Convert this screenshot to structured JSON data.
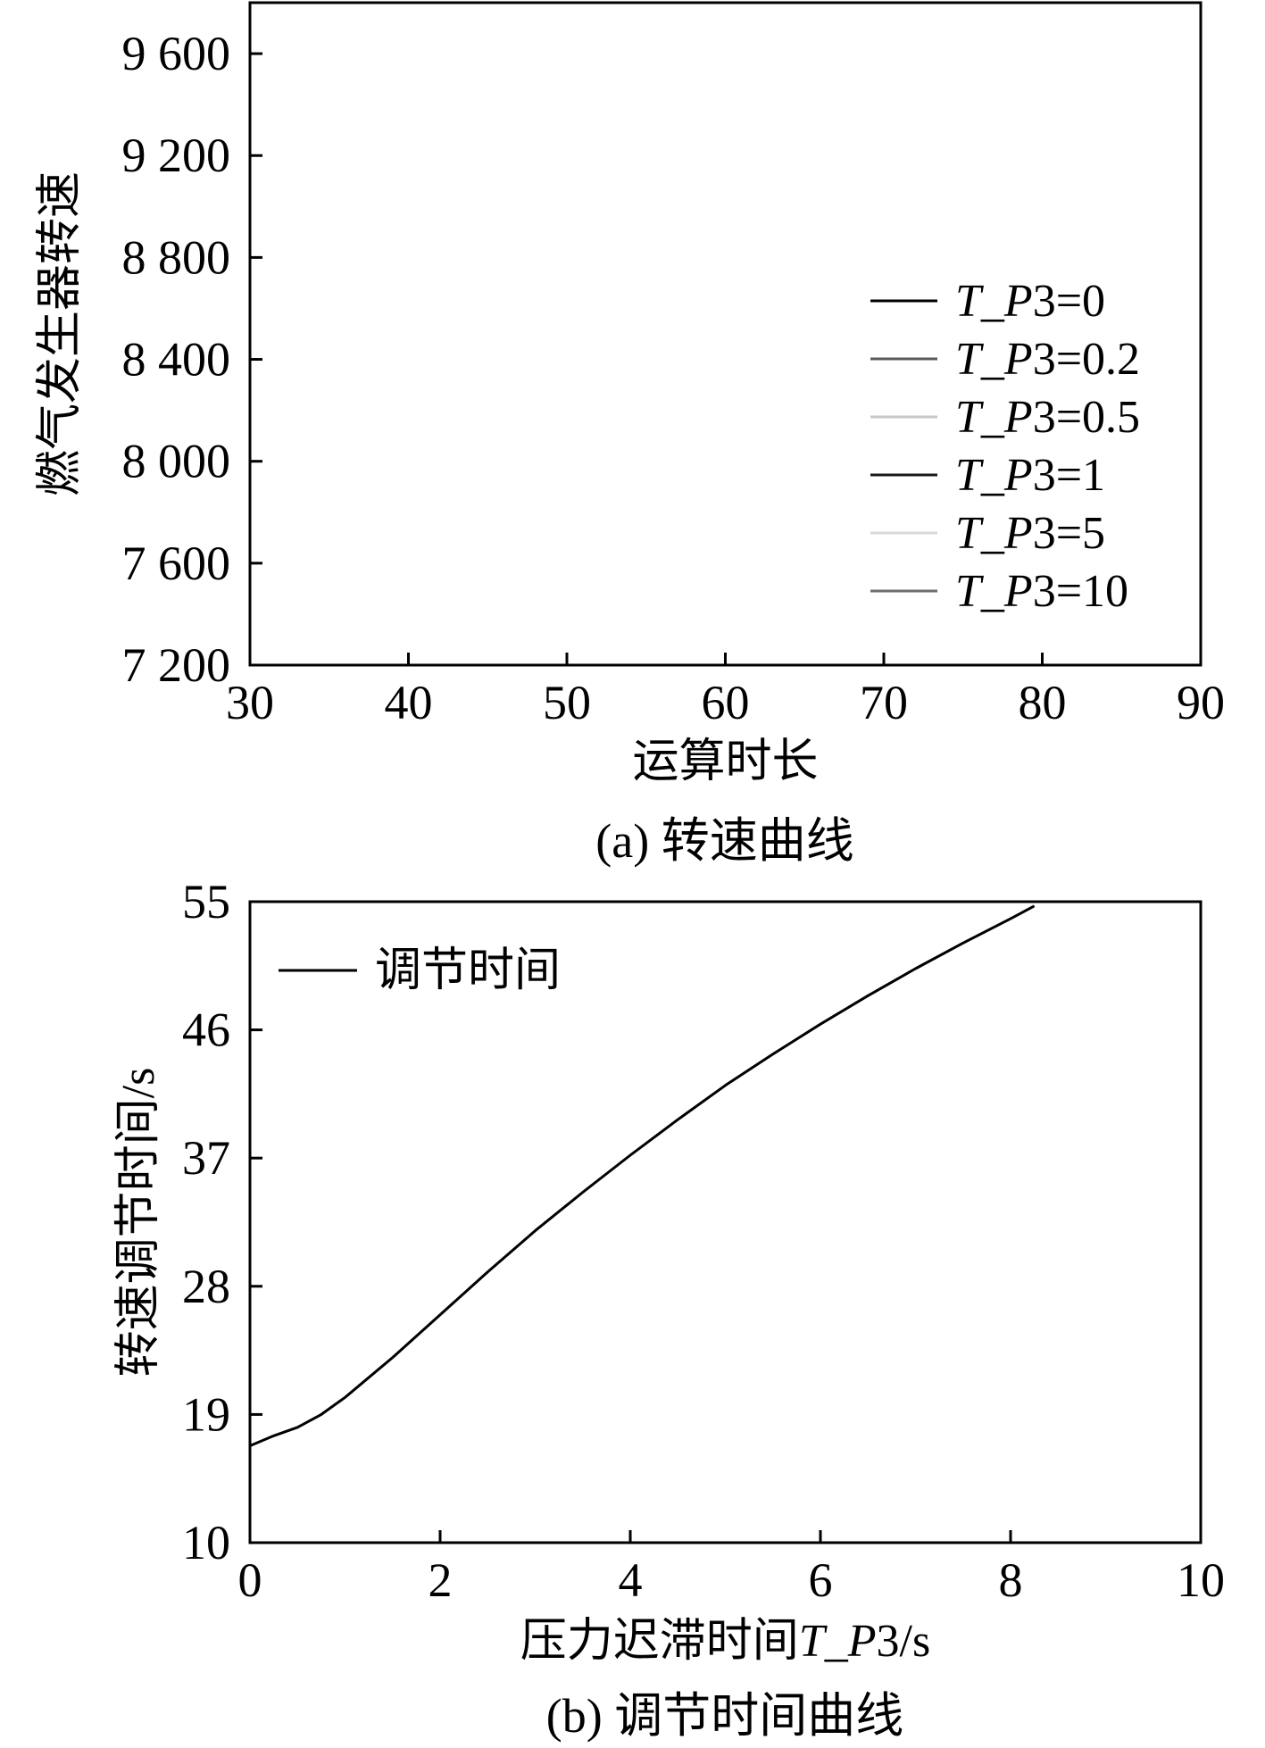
{
  "figure": {
    "panel_a_caption": "(a) 转速曲线",
    "panel_b_caption": "(b) 调节时间曲线"
  },
  "chart_data": [
    {
      "type": "line",
      "xlabel": "运算时长",
      "ylabel": "燃气发生器转速",
      "xlim": [
        30,
        90
      ],
      "ylim": [
        7200,
        9800
      ],
      "x_ticks": [
        30,
        40,
        50,
        60,
        70,
        80,
        90
      ],
      "x_tick_labels": [
        "30",
        "40",
        "50",
        "60",
        "70",
        "80",
        "90"
      ],
      "y_ticks": [
        7200,
        7600,
        8000,
        8400,
        8800,
        9200,
        9600
      ],
      "y_tick_labels": [
        "7 200",
        "7 600",
        "8 000",
        "8 400",
        "8 800",
        "9 200",
        "9 600"
      ],
      "legend_position": "right",
      "series": [
        {
          "name": "T_P3=0",
          "color": "#000000",
          "values": []
        },
        {
          "name": "T_P3=0.2",
          "color": "#5a5a5a",
          "values": []
        },
        {
          "name": "T_P3=0.5",
          "color": "#c8c8c8",
          "values": []
        },
        {
          "name": "T_P3=1",
          "color": "#1a1a1a",
          "values": []
        },
        {
          "name": "T_P3=5",
          "color": "#d9d9d9",
          "values": []
        },
        {
          "name": "T_P3=10",
          "color": "#6e6e6e",
          "values": []
        }
      ]
    },
    {
      "type": "line",
      "xlabel": "压力迟滞时间T_P3/s",
      "ylabel": "转速调节时间/s",
      "xlim": [
        0,
        10
      ],
      "ylim": [
        10,
        55
      ],
      "x_ticks": [
        0,
        2,
        4,
        6,
        8,
        10
      ],
      "x_tick_labels": [
        "0",
        "2",
        "4",
        "6",
        "8",
        "10"
      ],
      "y_ticks": [
        10,
        19,
        28,
        37,
        46,
        55
      ],
      "y_tick_labels": [
        "10",
        "19",
        "28",
        "37",
        "46",
        "55"
      ],
      "legend_position": "top-left",
      "series": [
        {
          "name": "调节时间",
          "color": "#000000",
          "x": [
            0,
            0.25,
            0.5,
            0.75,
            1.0,
            1.5,
            2.0,
            2.5,
            3.0,
            3.5,
            4.0,
            4.5,
            5.0,
            5.5,
            6.0,
            6.5,
            7.0,
            7.5,
            8.0,
            8.25
          ],
          "y": [
            16.8,
            17.5,
            18.1,
            19.0,
            20.2,
            23.0,
            26.0,
            29.0,
            31.9,
            34.6,
            37.2,
            39.7,
            42.1,
            44.3,
            46.4,
            48.4,
            50.3,
            52.1,
            53.8,
            54.7
          ]
        }
      ]
    }
  ]
}
